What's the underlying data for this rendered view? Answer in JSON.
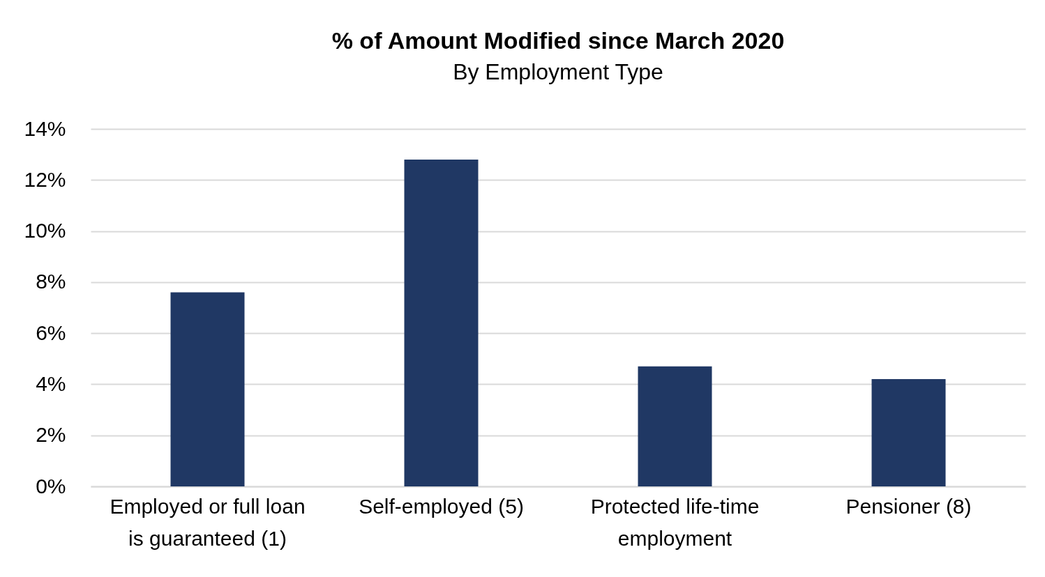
{
  "chart_data": {
    "type": "bar",
    "title": "% of Amount Modified since March 2020",
    "subtitle": "By Employment Type",
    "categories": [
      "Employed or full loan is guaranteed (1)",
      "Self-employed (5)",
      "Protected life-time employment",
      "Pensioner (8)"
    ],
    "values": [
      7.6,
      12.8,
      4.7,
      4.2
    ],
    "color": "#203864",
    "ylim": [
      0,
      14
    ],
    "yticks": [
      {
        "value": 0,
        "label": "0%"
      },
      {
        "value": 2,
        "label": "2%"
      },
      {
        "value": 4,
        "label": "4%"
      },
      {
        "value": 6,
        "label": "6%"
      },
      {
        "value": 8,
        "label": "8%"
      },
      {
        "value": 10,
        "label": "10%"
      },
      {
        "value": 12,
        "label": "12%"
      },
      {
        "value": 14,
        "label": "14%"
      }
    ],
    "grid": "y"
  }
}
